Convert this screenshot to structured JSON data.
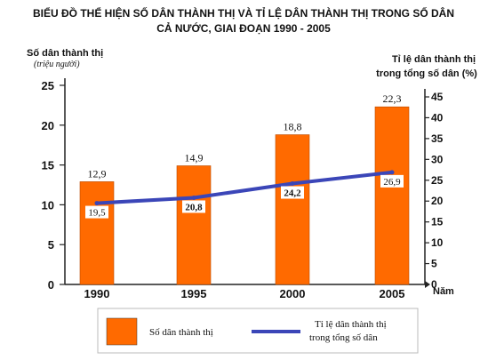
{
  "chart_data": {
    "type": "bar",
    "title_line1": "BIỂU ĐỒ THỂ HIỆN SỐ DÂN THÀNH THỊ VÀ TỈ LỆ DÂN THÀNH THỊ TRONG SỐ DÂN",
    "title_line2": "CẢ NƯỚC, GIAI ĐOẠN 1990 - 2005",
    "categories": [
      "1990",
      "1995",
      "2000",
      "2005"
    ],
    "xlabel": "Năm",
    "ylabel_left": "Số dân thành thị",
    "ylabel_left_unit": "(triệu người)",
    "ylabel_right_line1": "Tỉ lệ dân thành thị",
    "ylabel_right_line2": "trong tổng số dân (%)",
    "ylim_left": [
      0,
      25
    ],
    "yticks_left": [
      0,
      5,
      10,
      15,
      20,
      25
    ],
    "ylim_right": [
      0,
      45
    ],
    "yticks_right": [
      0,
      5,
      10,
      15,
      20,
      25,
      30,
      35,
      40,
      45
    ],
    "series": [
      {
        "name": "Số dân thành thị",
        "kind": "bar",
        "axis": "left",
        "color": "#ff6a00",
        "values": [
          12.9,
          14.9,
          18.8,
          22.3
        ],
        "labels": [
          "12,9",
          "14,9",
          "18,8",
          "22,3"
        ]
      },
      {
        "name_line1": "Tỉ lệ dân thành thị",
        "name_line2": "trong tổng số dân",
        "kind": "line",
        "axis": "right",
        "color": "#3b46b8",
        "values": [
          19.5,
          20.8,
          24.2,
          26.9
        ],
        "labels": [
          "19,5",
          "20,8",
          "24,2",
          "26,9"
        ]
      }
    ],
    "grid": false,
    "legend_position": "bottom"
  }
}
